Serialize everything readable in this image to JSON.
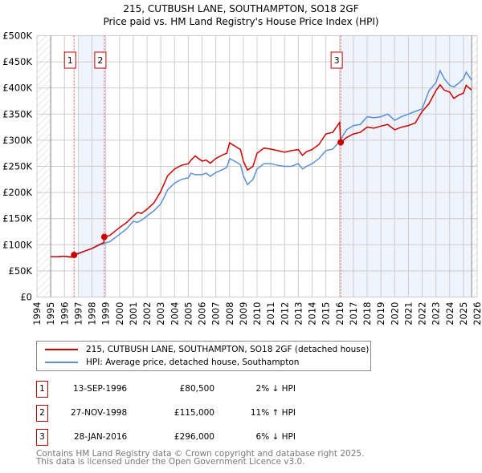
{
  "title_line1": "215, CUTBUSH LANE, SOUTHAMPTON, SO18 2GF",
  "title_line2": "Price paid vs. HM Land Registry's House Price Index (HPI)",
  "legend": {
    "property": "215, CUTBUSH LANE, SOUTHAMPTON, SO18 2GF (detached house)",
    "hpi": "HPI: Average price, detached house, Southampton"
  },
  "sales": [
    {
      "num": "1",
      "date": "13-SEP-1996",
      "price": "£80,500",
      "hpi_diff": "2% ↓ HPI"
    },
    {
      "num": "2",
      "date": "27-NOV-1998",
      "price": "£115,000",
      "hpi_diff": "11% ↑ HPI"
    },
    {
      "num": "3",
      "date": "28-JAN-2016",
      "price": "£296,000",
      "hpi_diff": "6% ↓ HPI"
    }
  ],
  "footer": {
    "line1": "Contains HM Land Registry data © Crown copyright and database right 2025.",
    "line2": "This data is licensed under the Open Government Licence v3.0."
  },
  "colors": {
    "property": "#cc0000",
    "hpi": "#5b8fd4",
    "shade": "#eef3fc",
    "grid": "#cccccc"
  },
  "chart_data": {
    "type": "line",
    "xlim": [
      1994,
      2026
    ],
    "ylim": [
      0,
      500000
    ],
    "x_ticks": [
      "1994",
      "1995",
      "1996",
      "1997",
      "1998",
      "1999",
      "2000",
      "2001",
      "2002",
      "2003",
      "2004",
      "2005",
      "2006",
      "2007",
      "2008",
      "2009",
      "2010",
      "2011",
      "2012",
      "2013",
      "2014",
      "2015",
      "2016",
      "2017",
      "2018",
      "2019",
      "2020",
      "2021",
      "2022",
      "2023",
      "2024",
      "2025",
      "2026"
    ],
    "y_ticks": [
      {
        "v": 0,
        "label": "£0"
      },
      {
        "v": 50000,
        "label": "£50K"
      },
      {
        "v": 100000,
        "label": "£100K"
      },
      {
        "v": 150000,
        "label": "£150K"
      },
      {
        "v": 200000,
        "label": "£200K"
      },
      {
        "v": 250000,
        "label": "£250K"
      },
      {
        "v": 300000,
        "label": "£300K"
      },
      {
        "v": 350000,
        "label": "£350K"
      },
      {
        "v": 400000,
        "label": "£400K"
      },
      {
        "v": 450000,
        "label": "£450K"
      },
      {
        "v": 500000,
        "label": "£500K"
      }
    ],
    "grid": true,
    "shaded_ranges": [
      [
        1997.0,
        1998.9
      ],
      [
        2016.08,
        2025.6
      ]
    ],
    "hatched_ranges": [
      [
        1994,
        1995
      ],
      [
        2025.6,
        2026
      ]
    ],
    "sale_points": [
      {
        "label": "1",
        "x": 1996.7,
        "y": 80500
      },
      {
        "label": "2",
        "x": 1998.9,
        "y": 115000
      },
      {
        "label": "3",
        "x": 2016.08,
        "y": 296000
      }
    ],
    "series": [
      {
        "name": "215, CUTBUSH LANE, SOUTHAMPTON, SO18 2GF (detached house)",
        "color": "#cc0000",
        "x": [
          1995,
          1995.5,
          1996,
          1996.5,
          1996.7,
          1997,
          1997.5,
          1998,
          1998.5,
          1998.85,
          1998.9,
          1999.3,
          2000,
          2000.5,
          2001,
          2001.3,
          2001.6,
          2002,
          2002.5,
          2003,
          2003.5,
          2004,
          2004.5,
          2005,
          2005.2,
          2005.5,
          2006,
          2006.3,
          2006.6,
          2007,
          2007.5,
          2007.8,
          2008,
          2008.5,
          2008.8,
          2009,
          2009.3,
          2009.7,
          2010,
          2010.5,
          2011,
          2011.5,
          2012,
          2012.5,
          2013,
          2013.3,
          2013.6,
          2014,
          2014.5,
          2015,
          2015.5,
          2016.0,
          2016.08,
          2016.5,
          2017,
          2017.5,
          2018,
          2018.5,
          2019,
          2019.5,
          2020,
          2020.5,
          2021,
          2021.5,
          2022,
          2022.5,
          2023,
          2023.3,
          2023.6,
          2024,
          2024.3,
          2024.7,
          2025,
          2025.2,
          2025.6
        ],
        "y": [
          77000,
          77000,
          78000,
          76000,
          80500,
          83000,
          88000,
          93000,
          100000,
          104000,
          115000,
          118000,
          133000,
          142000,
          155000,
          162000,
          160000,
          168000,
          180000,
          202000,
          232000,
          245000,
          252000,
          255000,
          262000,
          270000,
          260000,
          262000,
          256000,
          265000,
          272000,
          275000,
          295000,
          287000,
          282000,
          260000,
          243000,
          250000,
          275000,
          285000,
          283000,
          280000,
          277000,
          280000,
          282000,
          271000,
          278000,
          282000,
          292000,
          312000,
          315000,
          334000,
          296000,
          305000,
          312000,
          315000,
          325000,
          323000,
          327000,
          330000,
          320000,
          325000,
          328000,
          333000,
          355000,
          370000,
          395000,
          406000,
          396000,
          392000,
          380000,
          387000,
          390000,
          405000,
          396000
        ]
      },
      {
        "name": "HPI: Average price, detached house, Southampton",
        "color": "#5b8fd4",
        "x": [
          1995,
          1995.5,
          1996,
          1996.5,
          1996.7,
          1997,
          1997.5,
          1998,
          1998.5,
          1998.9,
          1999.3,
          2000,
          2000.5,
          2001,
          2001.3,
          2001.6,
          2002,
          2002.5,
          2003,
          2003.5,
          2004,
          2004.5,
          2005,
          2005.2,
          2005.5,
          2006,
          2006.3,
          2006.6,
          2007,
          2007.5,
          2007.8,
          2008,
          2008.5,
          2008.8,
          2009,
          2009.3,
          2009.7,
          2010,
          2010.5,
          2011,
          2011.5,
          2012,
          2012.5,
          2013,
          2013.3,
          2013.6,
          2014,
          2014.5,
          2015,
          2015.5,
          2016.0,
          2016.5,
          2017,
          2017.5,
          2018,
          2018.5,
          2019,
          2019.5,
          2020,
          2020.5,
          2021,
          2021.5,
          2022,
          2022.5,
          2023,
          2023.3,
          2023.6,
          2024,
          2024.3,
          2024.7,
          2025,
          2025.2,
          2025.6
        ],
        "y": [
          77000,
          77000,
          78000,
          77000,
          81000,
          84000,
          88000,
          93000,
          99000,
          103000,
          106000,
          120000,
          130000,
          145000,
          143000,
          147000,
          155000,
          165000,
          178000,
          205000,
          218000,
          225000,
          228000,
          237000,
          234000,
          234000,
          237000,
          231000,
          238000,
          244000,
          248000,
          265000,
          258000,
          253000,
          232000,
          215000,
          225000,
          245000,
          255000,
          255000,
          252000,
          250000,
          250000,
          255000,
          245000,
          250000,
          255000,
          265000,
          280000,
          283000,
          298000,
          320000,
          328000,
          330000,
          345000,
          343000,
          345000,
          350000,
          338000,
          345000,
          350000,
          355000,
          360000,
          395000,
          410000,
          433000,
          418000,
          405000,
          402000,
          410000,
          418000,
          430000,
          415000
        ]
      }
    ]
  }
}
